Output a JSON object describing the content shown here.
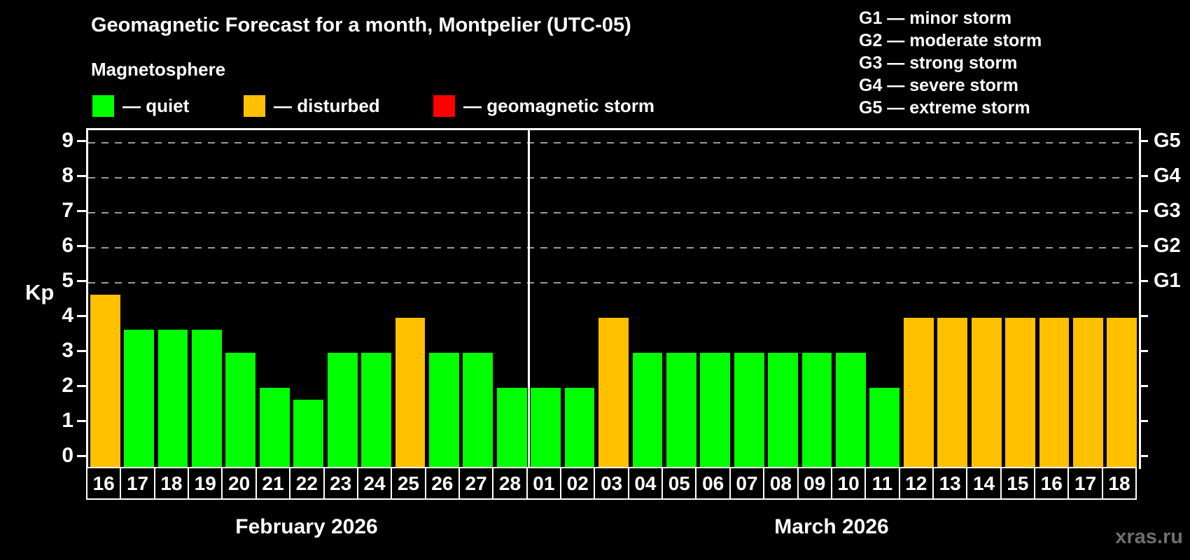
{
  "header": {
    "title": "Geomagnetic Forecast for a month, Montpelier (UTC-05)",
    "subtitle": "Magnetosphere"
  },
  "legend": {
    "items": [
      {
        "key": "quiet",
        "label": "— quiet",
        "color": "#00ff00"
      },
      {
        "key": "disturbed",
        "label": "— disturbed",
        "color": "#ffc000"
      },
      {
        "key": "storm",
        "label": "— geomagnetic storm",
        "color": "#ff0000"
      }
    ]
  },
  "storm_scale_legend": {
    "lines": [
      "G1 — minor storm",
      "G2 — moderate storm",
      "G3 — strong storm",
      "G4 — severe storm",
      "G5 — extreme storm"
    ]
  },
  "watermark": "xras.ru",
  "chart_data": {
    "type": "bar",
    "title": "Geomagnetic Forecast for a month, Montpelier (UTC-05)",
    "ylabel": "Kp",
    "ylim": [
      0,
      9.36
    ],
    "yticks": [
      0,
      1,
      2,
      3,
      4,
      5,
      6,
      7,
      8,
      9
    ],
    "grid_levels": [
      5,
      6,
      7,
      8,
      9
    ],
    "grid_on": true,
    "right_scale": [
      {
        "label": "G1",
        "kp": 5
      },
      {
        "label": "G2",
        "kp": 6
      },
      {
        "label": "G3",
        "kp": 7
      },
      {
        "label": "G4",
        "kp": 8
      },
      {
        "label": "G5",
        "kp": 9
      }
    ],
    "state_colors": {
      "quiet": "#00ff00",
      "disturbed": "#ffc000",
      "storm": "#ff0000"
    },
    "months": [
      {
        "label": "February 2026",
        "days": [
          {
            "day": "16",
            "kp": 4.67,
            "state": "disturbed"
          },
          {
            "day": "17",
            "kp": 3.67,
            "state": "quiet"
          },
          {
            "day": "18",
            "kp": 3.67,
            "state": "quiet"
          },
          {
            "day": "19",
            "kp": 3.67,
            "state": "quiet"
          },
          {
            "day": "20",
            "kp": 3,
            "state": "quiet"
          },
          {
            "day": "21",
            "kp": 2,
            "state": "quiet"
          },
          {
            "day": "22",
            "kp": 1.67,
            "state": "quiet"
          },
          {
            "day": "23",
            "kp": 3,
            "state": "quiet"
          },
          {
            "day": "24",
            "kp": 3,
            "state": "quiet"
          },
          {
            "day": "25",
            "kp": 4,
            "state": "disturbed"
          },
          {
            "day": "26",
            "kp": 3,
            "state": "quiet"
          },
          {
            "day": "27",
            "kp": 3,
            "state": "quiet"
          },
          {
            "day": "28",
            "kp": 2,
            "state": "quiet"
          }
        ]
      },
      {
        "label": "March 2026",
        "days": [
          {
            "day": "01",
            "kp": 2,
            "state": "quiet"
          },
          {
            "day": "02",
            "kp": 2,
            "state": "quiet"
          },
          {
            "day": "03",
            "kp": 4,
            "state": "disturbed"
          },
          {
            "day": "04",
            "kp": 3,
            "state": "quiet"
          },
          {
            "day": "05",
            "kp": 3,
            "state": "quiet"
          },
          {
            "day": "06",
            "kp": 3,
            "state": "quiet"
          },
          {
            "day": "07",
            "kp": 3,
            "state": "quiet"
          },
          {
            "day": "08",
            "kp": 3,
            "state": "quiet"
          },
          {
            "day": "09",
            "kp": 3,
            "state": "quiet"
          },
          {
            "day": "10",
            "kp": 3,
            "state": "quiet"
          },
          {
            "day": "11",
            "kp": 2,
            "state": "quiet"
          },
          {
            "day": "12",
            "kp": 4,
            "state": "disturbed"
          },
          {
            "day": "13",
            "kp": 4,
            "state": "disturbed"
          },
          {
            "day": "14",
            "kp": 4,
            "state": "disturbed"
          },
          {
            "day": "15",
            "kp": 4,
            "state": "disturbed"
          },
          {
            "day": "16",
            "kp": 4,
            "state": "disturbed"
          },
          {
            "day": "17",
            "kp": 4,
            "state": "disturbed"
          },
          {
            "day": "18",
            "kp": 4,
            "state": "disturbed"
          }
        ]
      }
    ]
  }
}
